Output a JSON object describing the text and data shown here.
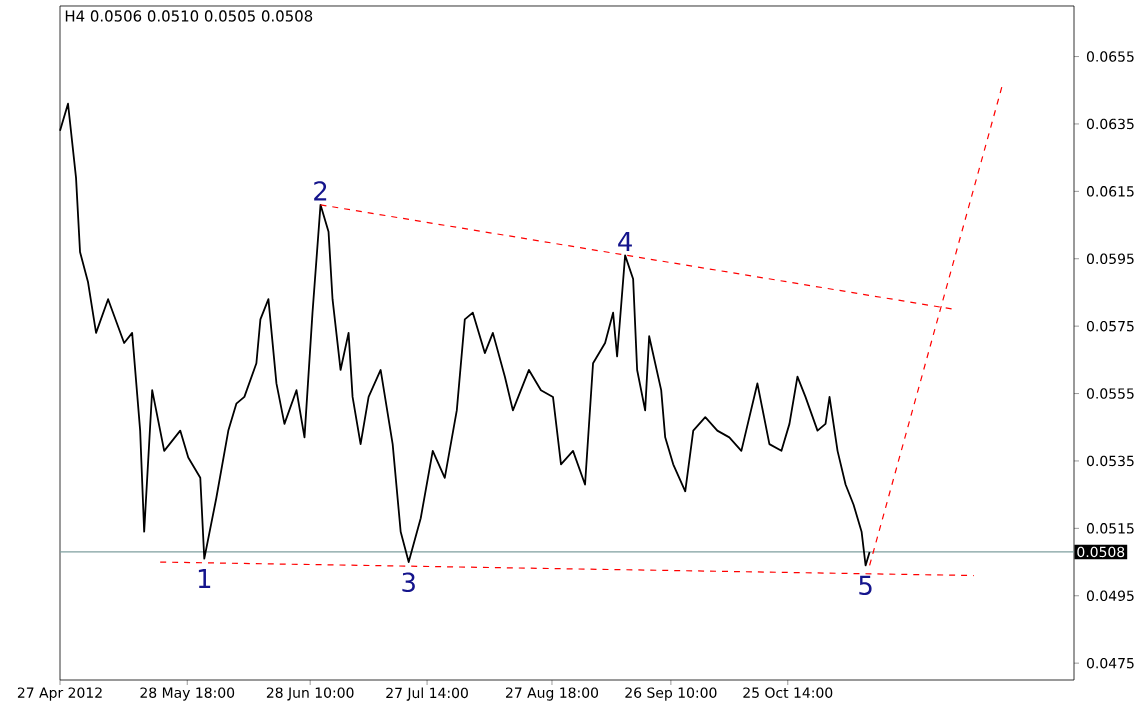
{
  "chart_data": {
    "type": "line",
    "title": "H4 0.0506 0.0510 0.0505 0.0508",
    "xlim": [
      "2012-04-27",
      "2013-01-05"
    ],
    "xticks": [
      {
        "value": "2012-04-27",
        "label": "27 Apr 2012"
      },
      {
        "value": "2012-05-28T18:00",
        "label": "28 May 18:00"
      },
      {
        "value": "2012-06-28T10:00",
        "label": "28 Jun 10:00"
      },
      {
        "value": "2012-07-27T14:00",
        "label": "27 Jul 14:00"
      },
      {
        "value": "2012-08-27T18:00",
        "label": "27 Aug 18:00"
      },
      {
        "value": "2012-09-26T10:00",
        "label": "26 Sep 10:00"
      },
      {
        "value": "2012-10-25T14:00",
        "label": "25 Oct 14:00"
      }
    ],
    "ylim": [
      0.047,
      0.067
    ],
    "yticks": [
      0.0475,
      0.0495,
      0.0515,
      0.0535,
      0.0555,
      0.0575,
      0.0595,
      0.0615,
      0.0635,
      0.0655
    ],
    "grid": false,
    "marker": "none",
    "series": [
      {
        "color": "#000000",
        "line_style": "solid",
        "x": [
          "2012-04-27",
          "2012-04-29",
          "2012-05-01",
          "2012-05-02",
          "2012-05-04",
          "2012-05-06",
          "2012-05-09",
          "2012-05-13",
          "2012-05-15",
          "2012-05-17",
          "2012-05-18",
          "2012-05-20",
          "2012-05-23",
          "2012-05-27",
          "2012-05-29",
          "2012-06-01",
          "2012-06-02",
          "2012-06-05",
          "2012-06-08",
          "2012-06-10",
          "2012-06-12",
          "2012-06-15",
          "2012-06-16",
          "2012-06-18",
          "2012-06-20",
          "2012-06-22",
          "2012-06-25",
          "2012-06-27",
          "2012-06-29",
          "2012-07-01",
          "2012-07-03",
          "2012-07-04",
          "2012-07-06",
          "2012-07-08",
          "2012-07-09",
          "2012-07-11",
          "2012-07-13",
          "2012-07-16",
          "2012-07-19",
          "2012-07-21",
          "2012-07-23",
          "2012-07-26",
          "2012-07-29",
          "2012-08-01",
          "2012-08-04",
          "2012-08-06",
          "2012-08-08",
          "2012-08-11",
          "2012-08-13",
          "2012-08-16",
          "2012-08-18",
          "2012-08-22",
          "2012-08-25",
          "2012-08-28",
          "2012-08-30",
          "2012-09-02",
          "2012-09-05",
          "2012-09-07",
          "2012-09-10",
          "2012-09-12",
          "2012-09-13",
          "2012-09-15",
          "2012-09-17",
          "2012-09-18",
          "2012-09-20",
          "2012-09-21",
          "2012-09-24",
          "2012-09-25",
          "2012-09-27",
          "2012-09-30",
          "2012-10-02",
          "2012-10-05",
          "2012-10-08",
          "2012-10-11",
          "2012-10-14",
          "2012-10-18",
          "2012-10-21",
          "2012-10-24",
          "2012-10-26",
          "2012-10-28",
          "2012-10-30",
          "2012-11-02",
          "2012-11-04",
          "2012-11-05",
          "2012-11-07",
          "2012-11-09",
          "2012-11-11",
          "2012-11-13",
          "2012-11-14",
          "2012-11-15"
        ],
        "values": [
          0.0633,
          0.0641,
          0.0619,
          0.0597,
          0.0588,
          0.0573,
          0.0583,
          0.057,
          0.0573,
          0.0544,
          0.0514,
          0.0556,
          0.0538,
          0.0544,
          0.0536,
          0.053,
          0.0506,
          0.0524,
          0.0544,
          0.0552,
          0.0554,
          0.0564,
          0.0577,
          0.0583,
          0.0558,
          0.0546,
          0.0556,
          0.0542,
          0.0579,
          0.0611,
          0.0603,
          0.0583,
          0.0562,
          0.0573,
          0.0554,
          0.054,
          0.0554,
          0.0562,
          0.054,
          0.0514,
          0.0505,
          0.0518,
          0.0538,
          0.053,
          0.055,
          0.0577,
          0.0579,
          0.0567,
          0.0573,
          0.056,
          0.055,
          0.0562,
          0.0556,
          0.0554,
          0.0534,
          0.0538,
          0.0528,
          0.0564,
          0.057,
          0.0579,
          0.0566,
          0.0596,
          0.0589,
          0.0562,
          0.055,
          0.0572,
          0.0556,
          0.0542,
          0.0534,
          0.0526,
          0.0544,
          0.0548,
          0.0544,
          0.0542,
          0.0538,
          0.0558,
          0.054,
          0.0538,
          0.0546,
          0.056,
          0.0554,
          0.0544,
          0.0546,
          0.0554,
          0.0538,
          0.0528,
          0.0522,
          0.0514,
          0.0504,
          0.0508
        ]
      },
      {
        "color": "#ff0000",
        "line_style": "dashed",
        "x": [
          "2012-07-01",
          "2012-12-06"
        ],
        "values": [
          0.0611,
          0.058
        ]
      },
      {
        "color": "#ff0000",
        "line_style": "dashed",
        "x": [
          "2012-05-22",
          "2012-12-11"
        ],
        "values": [
          0.0505,
          0.0501
        ]
      },
      {
        "color": "#ff0000",
        "line_style": "dashed",
        "x": [
          "2012-11-15",
          "2012-12-18"
        ],
        "values": [
          0.0504,
          0.0646
        ]
      }
    ],
    "ref_lines": [
      {
        "axis": "y",
        "value": 0.0508,
        "label": "0.0508",
        "color": "#7f9f9f"
      }
    ],
    "annotations": [
      {
        "text": "1",
        "x": "2012-06-02",
        "y": 0.0506
      },
      {
        "text": "2",
        "x": "2012-07-01",
        "y": 0.0611
      },
      {
        "text": "3",
        "x": "2012-07-23",
        "y": 0.0505
      },
      {
        "text": "4",
        "x": "2012-09-15",
        "y": 0.0596
      },
      {
        "text": "5",
        "x": "2012-11-14",
        "y": 0.0504
      }
    ]
  }
}
